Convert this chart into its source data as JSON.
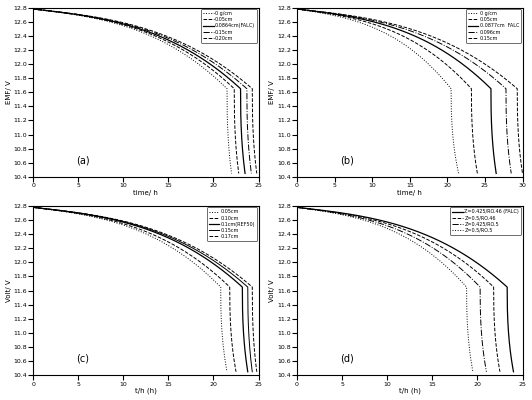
{
  "panels": [
    {
      "label": "(a)",
      "xlabel": "time/ h",
      "ylabel": "EMF/ V",
      "xlim": [
        0,
        25
      ],
      "ylim": [
        10.4,
        12.8
      ],
      "yticks": [
        10.4,
        10.6,
        10.8,
        11.0,
        11.2,
        11.4,
        11.6,
        11.8,
        12.0,
        12.2,
        12.4,
        12.6,
        12.8
      ],
      "xticks": [
        0,
        5,
        10,
        15,
        20,
        25
      ],
      "curves": [
        {
          "label": "0 g/cm",
          "style": ":",
          "color": "black",
          "lw": 0.7,
          "x_end": 22.0,
          "drop_at": 21.5
        },
        {
          "label": "0.05cm",
          "style": "--",
          "color": "black",
          "lw": 0.7,
          "x_end": 22.8,
          "drop_at": 22.3
        },
        {
          "label": "0.0864cm(FALC)",
          "style": "-",
          "color": "black",
          "lw": 0.9,
          "x_end": 23.5,
          "drop_at": 23.0
        },
        {
          "label": "0.15cm",
          "style": "-.",
          "color": "black",
          "lw": 0.7,
          "x_end": 24.2,
          "drop_at": 23.7
        },
        {
          "label": "0.20cm",
          "style": "--",
          "color": "black",
          "lw": 0.7,
          "x_end": 24.8,
          "drop_at": 24.3
        }
      ]
    },
    {
      "label": "(b)",
      "xlabel": "time/ h",
      "ylabel": "EMF/ V",
      "xlim": [
        0,
        30
      ],
      "ylim": [
        10.4,
        12.8
      ],
      "yticks": [
        10.4,
        10.6,
        10.8,
        11.0,
        11.2,
        11.4,
        11.6,
        11.8,
        12.0,
        12.2,
        12.4,
        12.6,
        12.8
      ],
      "xticks": [
        0,
        5,
        10,
        15,
        20,
        25,
        30
      ],
      "curves": [
        {
          "label": "0 g/cm",
          "style": ":",
          "color": "black",
          "lw": 0.7,
          "x_end": 21.5,
          "drop_at": 20.5
        },
        {
          "label": "0.05cm",
          "style": "--",
          "color": "black",
          "lw": 0.7,
          "x_end": 24.0,
          "drop_at": 23.2
        },
        {
          "label": "0.0877cm  FALC",
          "style": "-",
          "color": "black",
          "lw": 0.9,
          "x_end": 26.5,
          "drop_at": 25.8
        },
        {
          "label": "0.096cm",
          "style": "-.",
          "color": "black",
          "lw": 0.7,
          "x_end": 28.5,
          "drop_at": 27.8
        },
        {
          "label": "0.15cm",
          "style": "--",
          "color": "black",
          "lw": 0.7,
          "x_end": 30.0,
          "drop_at": 29.3
        }
      ]
    },
    {
      "label": "(c)",
      "xlabel": "t/h (h)",
      "ylabel": "Volt/ V",
      "xlim": [
        0,
        25
      ],
      "ylim": [
        10.4,
        12.8
      ],
      "yticks": [
        10.4,
        10.6,
        10.8,
        11.0,
        11.2,
        11.4,
        11.6,
        11.8,
        12.0,
        12.2,
        12.4,
        12.6,
        12.8
      ],
      "xticks": [
        0,
        5,
        10,
        15,
        20,
        25
      ],
      "curves": [
        {
          "label": "0.05cm",
          "style": ":",
          "color": "black",
          "lw": 0.7,
          "x_end": 21.5,
          "drop_at": 20.8
        },
        {
          "label": "0.10cm",
          "style": "--",
          "color": "black",
          "lw": 0.7,
          "x_end": 22.5,
          "drop_at": 21.8
        },
        {
          "label": "0.1cm(REF50)",
          "style": "-",
          "color": "black",
          "lw": 0.9,
          "x_end": 23.8,
          "drop_at": 23.2
        },
        {
          "label": "0.15cm",
          "style": "-",
          "color": "black",
          "lw": 0.7,
          "x_end": 24.3,
          "drop_at": 23.8
        },
        {
          "label": "0.17cm",
          "style": "--",
          "color": "black",
          "lw": 0.7,
          "x_end": 24.8,
          "drop_at": 24.3
        }
      ]
    },
    {
      "label": "(d)",
      "xlabel": "t/h (h)",
      "ylabel": "Volt/ V",
      "xlim": [
        0,
        25
      ],
      "ylim": [
        10.4,
        12.8
      ],
      "yticks": [
        10.4,
        10.6,
        10.8,
        11.0,
        11.2,
        11.4,
        11.6,
        11.8,
        12.0,
        12.2,
        12.4,
        12.6,
        12.8
      ],
      "xticks": [
        0,
        5,
        10,
        15,
        20,
        25
      ],
      "curves": [
        {
          "label": "Z=0.425/RO.46 (FALC)",
          "style": "-",
          "color": "black",
          "lw": 0.9,
          "x_end": 24.0,
          "drop_at": 23.3
        },
        {
          "label": "Z=0.5/RO.46",
          "style": "--",
          "color": "black",
          "lw": 0.7,
          "x_end": 22.5,
          "drop_at": 21.8
        },
        {
          "label": "Z=0.425/RO.5",
          "style": "-.",
          "color": "black",
          "lw": 0.7,
          "x_end": 21.0,
          "drop_at": 20.3
        },
        {
          "label": "Z=0.5/RO.5",
          "style": ":",
          "color": "black",
          "lw": 0.7,
          "x_end": 19.5,
          "drop_at": 18.8
        }
      ]
    }
  ],
  "v_start": 12.78,
  "v_plateau": 12.05,
  "v_knee": 11.65,
  "v_end": 10.45,
  "fig_size": [
    5.32,
    4.0
  ],
  "dpi": 100
}
